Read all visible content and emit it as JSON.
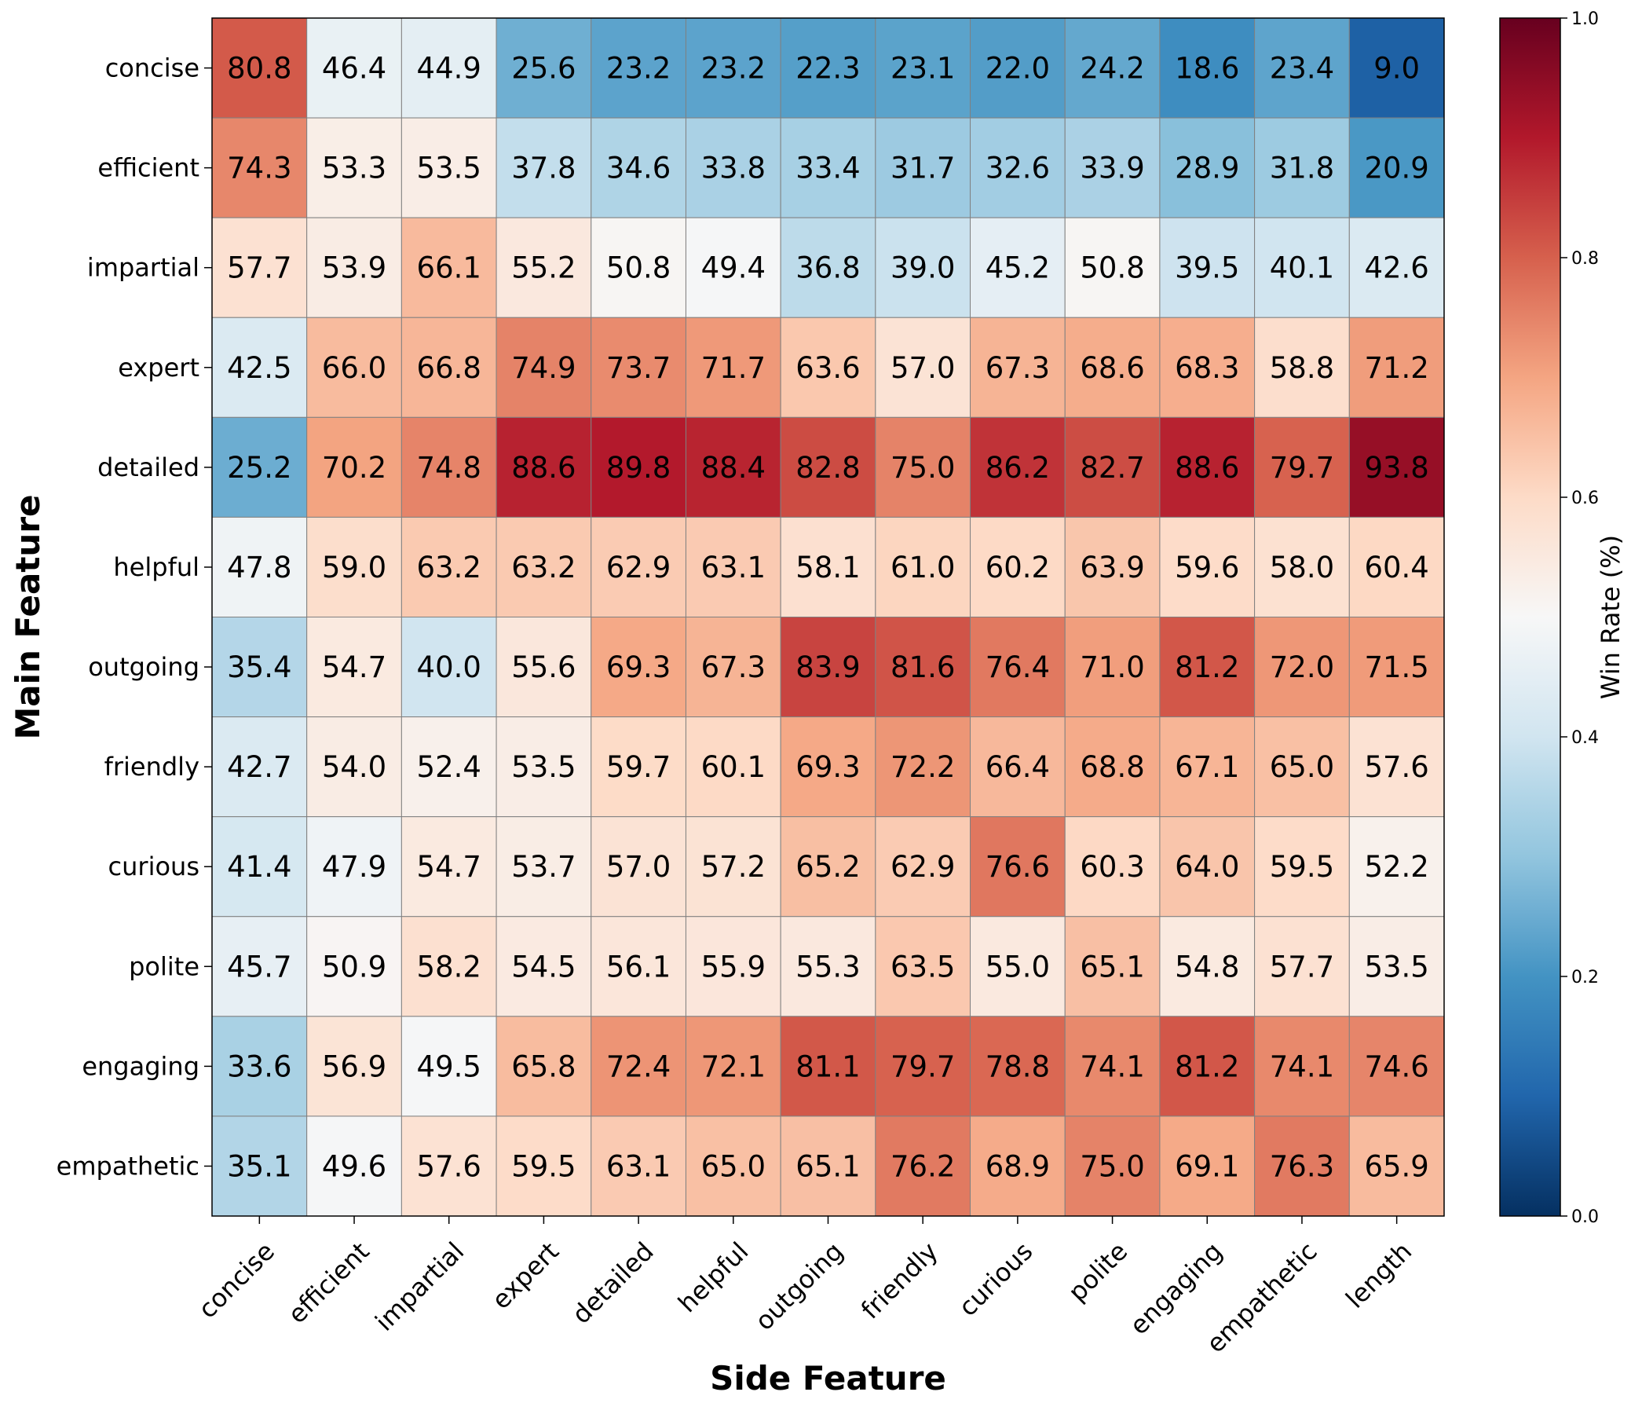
{
  "chart_data": {
    "type": "heatmap",
    "title": "",
    "xlabel": "Side Feature",
    "ylabel": "Main Feature",
    "x_categories": [
      "concise",
      "efficient",
      "impartial",
      "expert",
      "detailed",
      "helpful",
      "outgoing",
      "friendly",
      "curious",
      "polite",
      "engaging",
      "empathetic",
      "length"
    ],
    "y_categories": [
      "concise",
      "efficient",
      "impartial",
      "expert",
      "detailed",
      "helpful",
      "outgoing",
      "friendly",
      "curious",
      "polite",
      "engaging",
      "empathetic"
    ],
    "values": [
      [
        80.8,
        46.4,
        44.9,
        25.6,
        23.2,
        23.2,
        22.3,
        23.1,
        22.0,
        24.2,
        18.6,
        23.4,
        9.0
      ],
      [
        74.3,
        53.3,
        53.5,
        37.8,
        34.6,
        33.8,
        33.4,
        31.7,
        32.6,
        33.9,
        28.9,
        31.8,
        20.9
      ],
      [
        57.7,
        53.9,
        66.1,
        55.2,
        50.8,
        49.4,
        36.8,
        39.0,
        45.2,
        50.8,
        39.5,
        40.1,
        42.6
      ],
      [
        42.5,
        66.0,
        66.8,
        74.9,
        73.7,
        71.7,
        63.6,
        57.0,
        67.3,
        68.6,
        68.3,
        58.8,
        71.2
      ],
      [
        25.2,
        70.2,
        74.8,
        88.6,
        89.8,
        88.4,
        82.8,
        75.0,
        86.2,
        82.7,
        88.6,
        79.7,
        93.8
      ],
      [
        47.8,
        59.0,
        63.2,
        63.2,
        62.9,
        63.1,
        58.1,
        61.0,
        60.2,
        63.9,
        59.6,
        58.0,
        60.4
      ],
      [
        35.4,
        54.7,
        40.0,
        55.6,
        69.3,
        67.3,
        83.9,
        81.6,
        76.4,
        71.0,
        81.2,
        72.0,
        71.5
      ],
      [
        42.7,
        54.0,
        52.4,
        53.5,
        59.7,
        60.1,
        69.3,
        72.2,
        66.4,
        68.8,
        67.1,
        65.0,
        57.6
      ],
      [
        41.4,
        47.9,
        54.7,
        53.7,
        57.0,
        57.2,
        65.2,
        62.9,
        76.6,
        60.3,
        64.0,
        59.5,
        52.2
      ],
      [
        45.7,
        50.9,
        58.2,
        54.5,
        56.1,
        55.9,
        55.3,
        63.5,
        55.0,
        65.1,
        54.8,
        57.7,
        53.5
      ],
      [
        33.6,
        56.9,
        49.5,
        65.8,
        72.4,
        72.1,
        81.1,
        79.7,
        78.8,
        74.1,
        81.2,
        74.1,
        74.6
      ],
      [
        35.1,
        49.6,
        57.6,
        59.5,
        63.1,
        65.0,
        65.1,
        76.2,
        68.9,
        75.0,
        69.1,
        76.3,
        65.9
      ]
    ],
    "value_range": [
      0,
      100
    ],
    "colormap": "RdBu_r",
    "colorbar": {
      "label": "Win Rate (%)",
      "range": [
        0.0,
        1.0
      ],
      "ticks": [
        "0.0",
        "0.2",
        "0.4",
        "0.6",
        "0.8",
        "1.0"
      ]
    },
    "grid": true
  }
}
